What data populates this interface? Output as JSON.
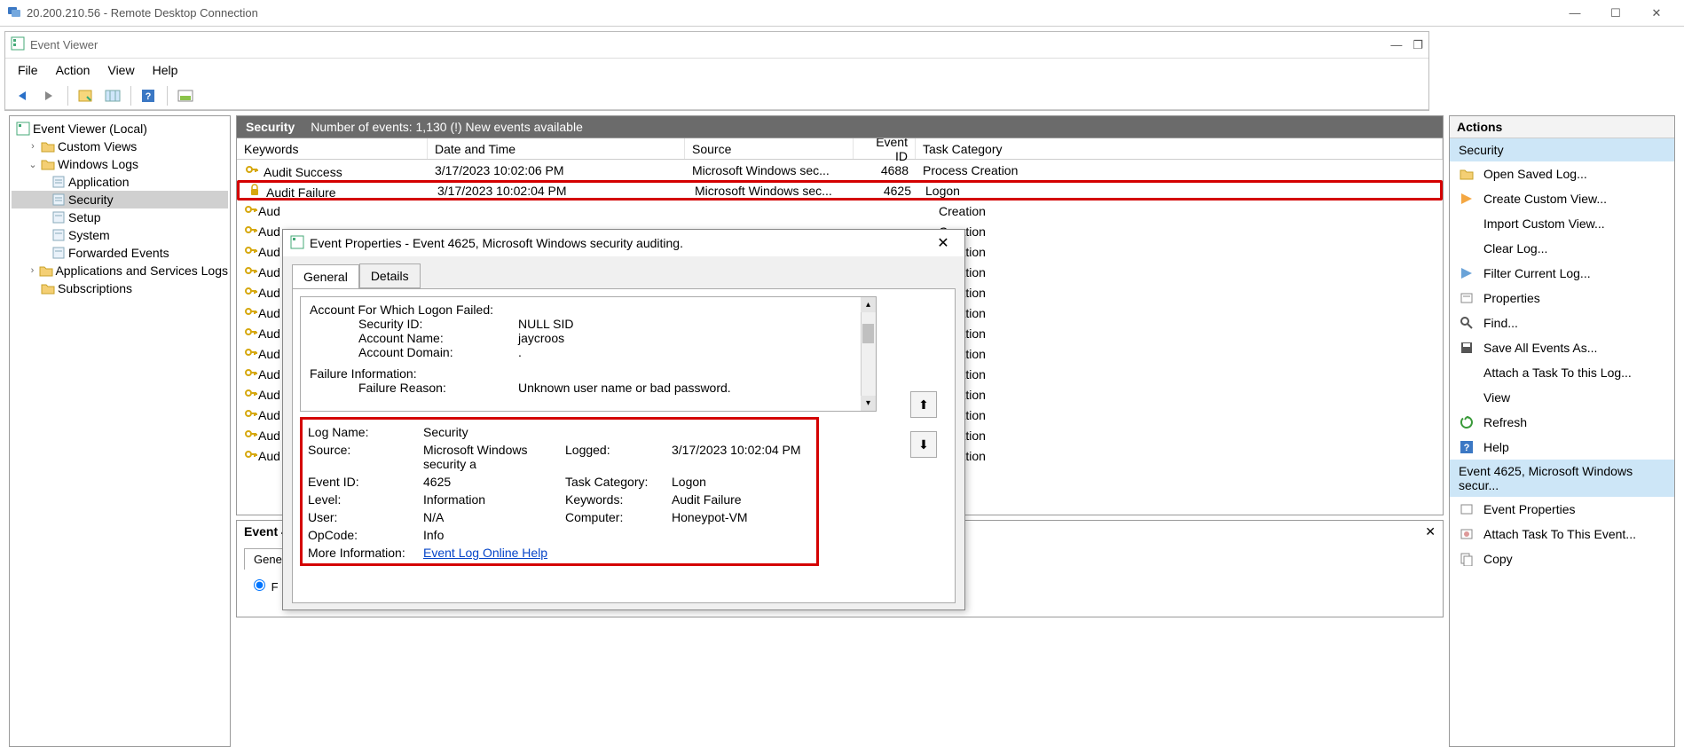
{
  "rdp": {
    "title": "20.200.210.56 - Remote Desktop Connection"
  },
  "ev": {
    "title": "Event Viewer",
    "menu": {
      "file": "File",
      "action": "Action",
      "view": "View",
      "help": "Help"
    }
  },
  "tree": {
    "root": "Event Viewer (Local)",
    "customViews": "Custom Views",
    "windowsLogs": "Windows Logs",
    "application": "Application",
    "security": "Security",
    "setup": "Setup",
    "system": "System",
    "forwarded": "Forwarded Events",
    "appsvc": "Applications and Services Logs",
    "subs": "Subscriptions"
  },
  "centerHeader": {
    "logName": "Security",
    "summary": "Number of events: 1,130 (!) New events available"
  },
  "cols": {
    "keywords": "Keywords",
    "date": "Date and Time",
    "source": "Source",
    "eventid": "Event ID",
    "category": "Task Category"
  },
  "rows": [
    {
      "keywords": "Audit Success",
      "date": "3/17/2023 10:02:06 PM",
      "source": "Microsoft Windows sec...",
      "eventid": "4688",
      "category": "Process Creation",
      "type": "success"
    },
    {
      "keywords": "Audit Failure",
      "date": "3/17/2023 10:02:04 PM",
      "source": "Microsoft Windows sec...",
      "eventid": "4625",
      "category": "Logon",
      "type": "failure"
    }
  ],
  "truncPrefix": "Aud",
  "truncCategories": [
    "Creation",
    "Creation",
    "Creation",
    "Creation",
    "Creation",
    "Creation",
    "Creation",
    "Creation",
    "Creation",
    "Creation",
    "Creation",
    "Creation",
    "Creation"
  ],
  "bottomPanel": {
    "title": "Event 4",
    "tabGeneral": "Gene",
    "radioLabel": "F"
  },
  "dialog": {
    "title": "Event Properties - Event 4625, Microsoft Windows security auditing.",
    "tabGeneral": "General",
    "tabDetails": "Details",
    "desc": {
      "l1": "Account For Which Logon Failed:",
      "l2a": "Security ID:",
      "l2b": "NULL SID",
      "l3a": "Account Name:",
      "l3b": "jaycroos",
      "l4a": "Account Domain:",
      "l4b": ".",
      "l5": "Failure Information:",
      "l6a": "Failure Reason:",
      "l6b": "Unknown user name or bad password."
    },
    "meta": {
      "logNameL": "Log Name:",
      "logNameV": "Security",
      "sourceL": "Source:",
      "sourceV": "Microsoft Windows security a",
      "loggedL": "Logged:",
      "loggedV": "3/17/2023 10:02:04 PM",
      "eventIdL": "Event ID:",
      "eventIdV": "4625",
      "taskCatL": "Task Category:",
      "taskCatV": "Logon",
      "levelL": "Level:",
      "levelV": "Information",
      "keywordsL": "Keywords:",
      "keywordsV": "Audit Failure",
      "userL": "User:",
      "userV": "N/A",
      "computerL": "Computer:",
      "computerV": "Honeypot-VM",
      "opcodeL": "OpCode:",
      "opcodeV": "Info",
      "moreInfoL": "More Information:",
      "moreInfoV": "Event Log Online Help"
    }
  },
  "actions": {
    "title": "Actions",
    "section1": "Security",
    "items1": [
      "Open Saved Log...",
      "Create Custom View...",
      "Import Custom View...",
      "Clear Log...",
      "Filter Current Log...",
      "Properties",
      "Find...",
      "Save All Events As...",
      "Attach a Task To this Log...",
      "View",
      "Refresh",
      "Help"
    ],
    "section2": "Event 4625, Microsoft Windows secur...",
    "items2": [
      "Event Properties",
      "Attach Task To This Event...",
      "Copy"
    ]
  }
}
